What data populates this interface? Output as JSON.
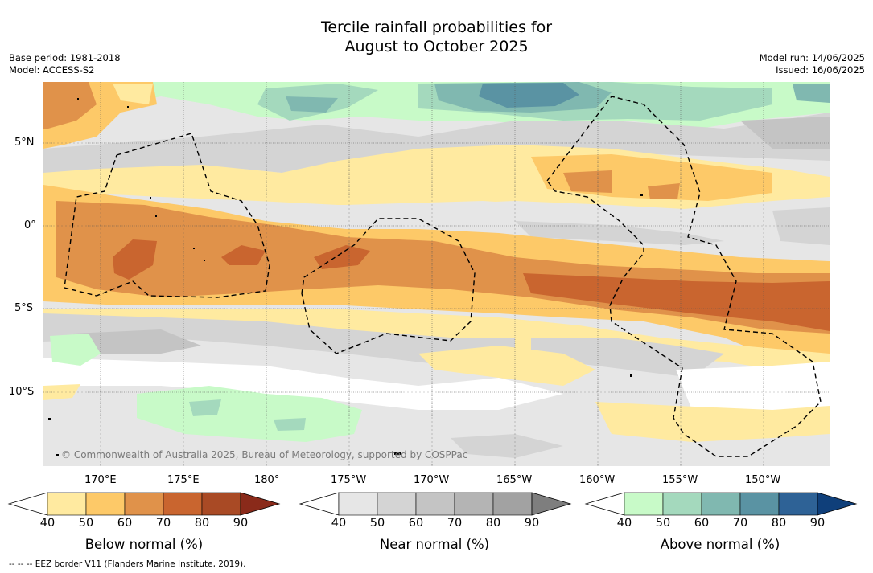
{
  "title": {
    "line1": "Tercile rainfall probabilities for",
    "line2": "August to October 2025"
  },
  "meta_left": {
    "base_period": "Base period: 1981-2018",
    "model": "Model: ACCESS-S2"
  },
  "meta_right": {
    "model_run": "Model run: 14/06/2025",
    "issued": "Issued: 16/06/2025"
  },
  "map": {
    "lat_labels": [
      "5°N",
      "0°",
      "5°S",
      "10°S"
    ],
    "lon_labels": [
      "170°E",
      "175°E",
      "180°",
      "175°W",
      "170°W",
      "165°W",
      "160°W",
      "155°W",
      "150°W"
    ],
    "copyright": "© Commonwealth of Australia 2025, Bureau of Meteorology, supported by COSPPac",
    "gridlines": true,
    "dashed_boundaries": "EEZ borders"
  },
  "colorbars": [
    {
      "title": "Below normal (%)",
      "ticks": [
        "40",
        "50",
        "60",
        "70",
        "80",
        "90"
      ],
      "colors": [
        "#ffffff",
        "#ffeaa0",
        "#fdc968",
        "#e0924a",
        "#c9652f",
        "#a94a25",
        "#8a2a1a"
      ]
    },
    {
      "title": "Near normal (%)",
      "ticks": [
        "40",
        "50",
        "60",
        "70",
        "80",
        "90"
      ],
      "colors": [
        "#ffffff",
        "#e6e6e6",
        "#d4d4d4",
        "#c4c4c4",
        "#b4b4b4",
        "#a2a2a2",
        "#7e7e7e"
      ]
    },
    {
      "title": "Above normal (%)",
      "ticks": [
        "40",
        "50",
        "60",
        "70",
        "80",
        "90"
      ],
      "colors": [
        "#ffffff",
        "#c8fac8",
        "#a4d9bd",
        "#80b8b0",
        "#5a93a3",
        "#2e6296",
        "#0f3f7a"
      ]
    }
  ],
  "footnote": "--  --  -- EEZ border V11 (Flanders Marine Institute, 2019)."
}
